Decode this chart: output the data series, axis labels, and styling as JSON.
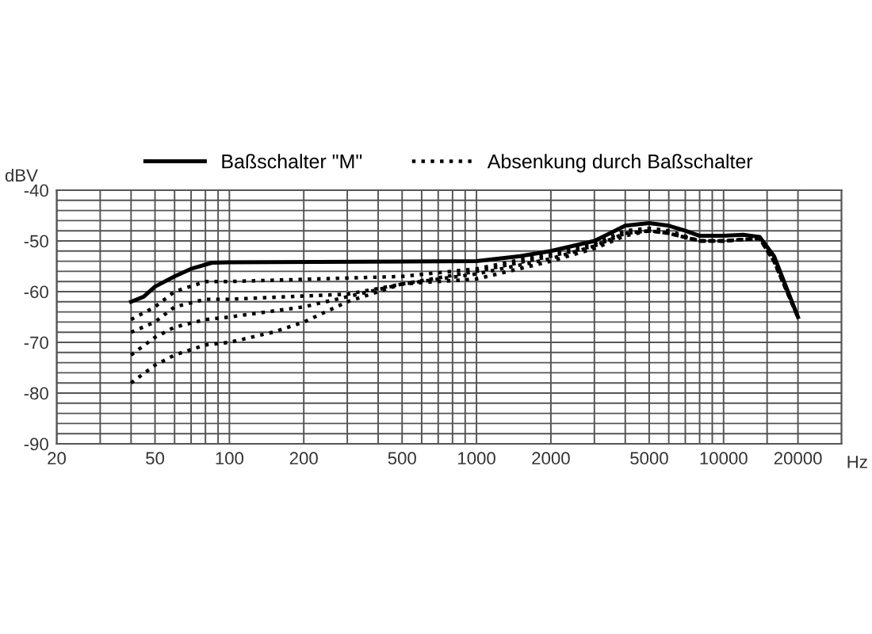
{
  "chart_data": {
    "type": "line",
    "xlabel": "Hz",
    "ylabel": "dBV",
    "log": "x",
    "grid": true,
    "legend": "top",
    "marker": "none",
    "xlim": [
      20,
      30000
    ],
    "ylim": [
      -90,
      -40
    ],
    "xticks": [
      20,
      {
        "value": 30,
        "label": null
      },
      {
        "value": 40,
        "label": null
      },
      50,
      {
        "value": 60,
        "label": null
      },
      {
        "value": 70,
        "label": null
      },
      {
        "value": 80,
        "label": null
      },
      {
        "value": 90,
        "label": null
      },
      100,
      200,
      {
        "value": 300,
        "label": null
      },
      {
        "value": 400,
        "label": null
      },
      500,
      {
        "value": 600,
        "label": null
      },
      {
        "value": 700,
        "label": null
      },
      {
        "value": 800,
        "label": null
      },
      {
        "value": 900,
        "label": null
      },
      1000,
      2000,
      {
        "value": 3000,
        "label": null
      },
      {
        "value": 4000,
        "label": null
      },
      5000,
      {
        "value": 6000,
        "label": null
      },
      {
        "value": 7000,
        "label": null
      },
      {
        "value": 8000,
        "label": null
      },
      {
        "value": 9000,
        "label": null
      },
      10000,
      {
        "value": 15000,
        "label": null
      },
      20000
    ],
    "yticks": [
      -90,
      {
        "value": -88,
        "label": null
      },
      {
        "value": -86,
        "label": null
      },
      {
        "value": -84,
        "label": null
      },
      {
        "value": -82,
        "label": null
      },
      -80,
      {
        "value": -78,
        "label": null
      },
      {
        "value": -76,
        "label": null
      },
      {
        "value": -74,
        "label": null
      },
      {
        "value": -72,
        "label": null
      },
      -70,
      {
        "value": -68,
        "label": null
      },
      {
        "value": -66,
        "label": null
      },
      {
        "value": -64,
        "label": null
      },
      {
        "value": -62,
        "label": null
      },
      -60,
      {
        "value": -58,
        "label": null
      },
      {
        "value": -56,
        "label": null
      },
      {
        "value": -54,
        "label": null
      },
      {
        "value": -52,
        "label": null
      },
      -50,
      {
        "value": -48,
        "label": null
      },
      {
        "value": -46,
        "label": null
      },
      {
        "value": -44,
        "label": null
      },
      {
        "value": -42,
        "label": null
      },
      -40
    ],
    "series": [
      {
        "name": "Baßschalter \"M\"",
        "color": "#000000",
        "line_style": "solid",
        "x": [
          40,
          45,
          50,
          60,
          70,
          85,
          100,
          1000,
          1500,
          2000,
          3000,
          4000,
          5000,
          6000,
          7000,
          8000,
          10000,
          12000,
          14000,
          16000,
          20000
        ],
        "values": [
          -62,
          -61,
          -59,
          -57,
          -55.5,
          -54.3,
          -54.2,
          -54,
          -53,
          -52,
          -50,
          -47,
          -46.5,
          -47,
          -48,
          -49,
          -49,
          -48.8,
          -49.2,
          -53,
          -65
        ]
      },
      {
        "name": "Absenkung durch Baßschalter",
        "color": "#000000",
        "line_style": "dotted",
        "x": [
          40,
          50,
          60,
          80,
          100,
          500,
          1000,
          2000,
          3000,
          4000,
          5000,
          6000,
          8000,
          10000,
          14000,
          16000,
          20000
        ],
        "values": [
          -65.5,
          -63,
          -60,
          -58,
          -58,
          -57,
          -55.5,
          -52.5,
          -50.5,
          -48,
          -47.5,
          -48,
          -50,
          -50,
          -49.5,
          -54,
          -65
        ]
      },
      {
        "color": "#000000",
        "line_style": "dotted",
        "x": [
          40,
          50,
          60,
          80,
          100,
          300,
          500,
          1000,
          2000,
          3000,
          4000,
          5000,
          6000,
          8000,
          10000,
          14000,
          16000,
          20000
        ],
        "values": [
          -68,
          -66,
          -63,
          -61.5,
          -61.5,
          -60.5,
          -58.5,
          -56,
          -53,
          -51,
          -48.5,
          -48,
          -48.5,
          -50,
          -50,
          -49.5,
          -54,
          -65
        ]
      },
      {
        "color": "#000000",
        "line_style": "dotted",
        "x": [
          40,
          50,
          60,
          80,
          100,
          200,
          300,
          500,
          1000,
          2000,
          3000,
          4000,
          5000,
          6000,
          8000,
          10000,
          14000,
          16000,
          20000
        ],
        "values": [
          -72.5,
          -69,
          -67,
          -65.5,
          -65,
          -63,
          -61,
          -58.5,
          -56.5,
          -53.5,
          -51,
          -48.5,
          -48,
          -48.5,
          -50,
          -50,
          -49.5,
          -54,
          -65
        ]
      },
      {
        "color": "#000000",
        "line_style": "dotted",
        "x": [
          40,
          50,
          60,
          80,
          100,
          150,
          200,
          300,
          500,
          1000,
          2000,
          3000,
          4000,
          5000,
          6000,
          8000,
          10000,
          14000,
          16000,
          20000
        ],
        "values": [
          -78,
          -74.5,
          -72.5,
          -70.5,
          -70,
          -68,
          -66,
          -62,
          -58.5,
          -57.5,
          -54,
          -51.5,
          -49,
          -48,
          -48.5,
          -50,
          -50,
          -49.5,
          -54,
          -65
        ]
      }
    ]
  }
}
